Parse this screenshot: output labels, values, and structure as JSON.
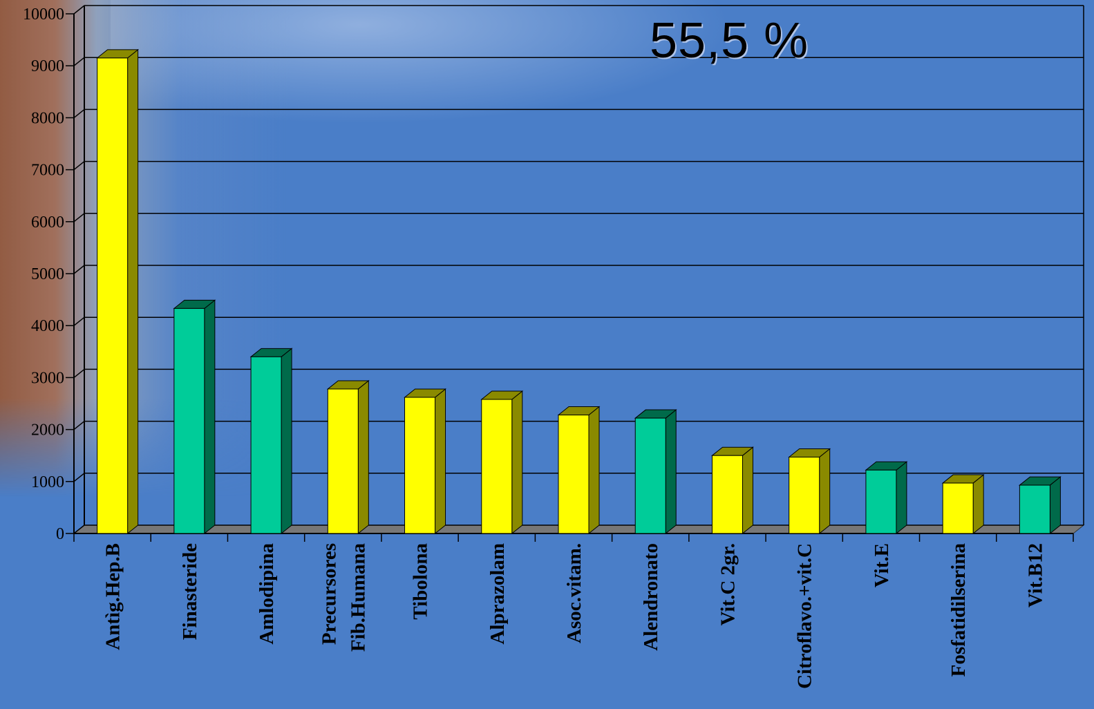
{
  "headline": "55,5 %",
  "colors": {
    "background": "#4a7ec8",
    "yellow": "#ffff00",
    "yellow_side": "#8a8a00",
    "green": "#00cc99",
    "green_side": "#006a4a",
    "gridline": "#000000",
    "floor": "#777777"
  },
  "chart_data": {
    "type": "bar",
    "title": "",
    "xlabel": "",
    "ylabel": "",
    "ylim": [
      0,
      10000
    ],
    "yticks": [
      "0",
      "1000",
      "2000",
      "3000",
      "4000",
      "5000",
      "6000",
      "7000",
      "8000",
      "9000",
      "10000"
    ],
    "categories": [
      [
        "Antìg.Hep.B"
      ],
      [
        "Finasteride"
      ],
      [
        "Amlodipina"
      ],
      [
        "Precursores",
        "Fib.Humana"
      ],
      [
        "Tibolona"
      ],
      [
        "Alprazolam"
      ],
      [
        "Asoc.vitam."
      ],
      [
        "Alendronato"
      ],
      [
        "Vit.C 2gr."
      ],
      [
        "Citroflavo.+vit.C"
      ],
      [
        "Vit.E"
      ],
      [
        "Fosfatidilserina"
      ],
      [
        "Vit.B12"
      ]
    ],
    "values": [
      9150,
      4330,
      3400,
      2780,
      2620,
      2580,
      2280,
      2220,
      1500,
      1470,
      1220,
      970,
      930
    ],
    "bar_colors": [
      "yellow",
      "green",
      "green",
      "yellow",
      "yellow",
      "yellow",
      "yellow",
      "green",
      "yellow",
      "yellow",
      "green",
      "yellow",
      "green"
    ],
    "grid": true,
    "style": "3d"
  }
}
